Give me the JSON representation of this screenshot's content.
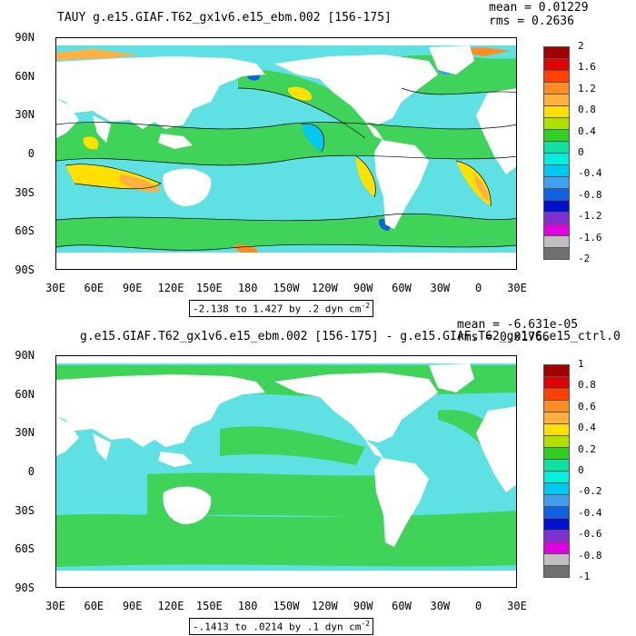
{
  "panels": [
    {
      "title": "TAUY g.e15.GIAF.T62_gx1v6.e15_ebm.002 [156-175]",
      "mean": "mean = 0.01229",
      "rms": "rms = 0.2636",
      "range_note": "-2.138 to 1.427 by .2 dyn cm",
      "range_exp": "-2",
      "colorbar": {
        "labels": [
          "2",
          "1.6",
          "1.2",
          "0.8",
          "0.4",
          "0",
          "-0.4",
          "-0.8",
          "-1.2",
          "-1.6",
          "-2"
        ],
        "colors": [
          "#a00000",
          "#e00000",
          "#ff4000",
          "#ff8c20",
          "#ffb040",
          "#ffe000",
          "#b0e000",
          "#30d020",
          "#10e0a0",
          "#00f0e0",
          "#00c8f0",
          "#40a0f0",
          "#1060e0",
          "#0010d0",
          "#8030d0",
          "#e000e0",
          "#c0c0c0",
          "#707070"
        ]
      }
    },
    {
      "title": "g.e15.GIAF.T62_gx1v6.e15_ebm.002 [156-175] - g.e15.GIAF.T62_gx1v6.e15_ctrl.0",
      "mean": "mean = -6.631e-05",
      "rms": "rms = 0.01766",
      "range_note": "-.1413 to .0214 by .1 dyn cm",
      "range_exp": "-2",
      "colorbar": {
        "labels": [
          "1",
          "0.8",
          "0.6",
          "0.4",
          "0.2",
          "0",
          "-0.2",
          "-0.4",
          "-0.6",
          "-0.8",
          "-1"
        ],
        "colors": [
          "#a00000",
          "#e00000",
          "#ff4000",
          "#ff8c20",
          "#ffb040",
          "#ffe000",
          "#b0e000",
          "#30d020",
          "#10e0a0",
          "#00f0e0",
          "#00c8f0",
          "#40a0f0",
          "#1060e0",
          "#0010d0",
          "#8030d0",
          "#e000e0",
          "#c0c0c0",
          "#707070"
        ]
      }
    }
  ],
  "axes": {
    "lat_labels": [
      "90N",
      "60N",
      "30N",
      "0",
      "30S",
      "60S",
      "90S"
    ],
    "lon_labels": [
      "30E",
      "60E",
      "90E",
      "120E",
      "150E",
      "180",
      "150W",
      "120W",
      "90W",
      "60W",
      "30W",
      "0",
      "30E"
    ]
  }
}
